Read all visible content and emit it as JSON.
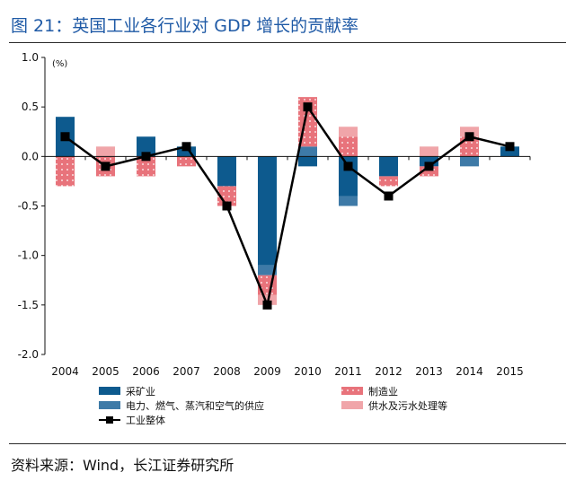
{
  "figure_title": "图 21：英国工业各行业对 GDP 增长的贡献率",
  "source_text": "资料来源：Wind，长江证券研究所",
  "chart_data": {
    "type": "bar",
    "stacked": true,
    "title": "图 21：英国工业各行业对 GDP 增长的贡献率",
    "unit_label": "(%)",
    "categories": [
      "2004",
      "2005",
      "2006",
      "2007",
      "2008",
      "2009",
      "2010",
      "2011",
      "2012",
      "2013",
      "2014",
      "2015"
    ],
    "ylim": [
      -2.0,
      1.0
    ],
    "yticks": [
      1.0,
      0.5,
      0.0,
      -0.5,
      -1.0,
      -1.5,
      -2.0
    ],
    "ytick_labels": [
      "1.0",
      "0.5",
      "0.0",
      "-0.5",
      "-1.0",
      "-1.5",
      "-2.0"
    ],
    "legend_position": "bottom",
    "series": [
      {
        "name": "采矿业",
        "type": "bar",
        "color": "#0d5a8e",
        "pattern": "solid",
        "values": [
          0.4,
          0.0,
          0.2,
          0.1,
          -0.3,
          -1.1,
          -0.1,
          -0.4,
          -0.2,
          -0.1,
          0.0,
          0.1
        ]
      },
      {
        "name": "电力、燃气、蒸汽和空气的供应",
        "type": "bar",
        "color": "#3e7aa7",
        "pattern": "solid",
        "values": [
          0.0,
          0.0,
          0.0,
          0.0,
          0.0,
          -0.1,
          0.1,
          -0.1,
          0.0,
          0.0,
          -0.1,
          0.0
        ]
      },
      {
        "name": "制造业",
        "type": "bar",
        "color": "#e8737b",
        "pattern": "dotted",
        "values": [
          -0.3,
          -0.2,
          -0.2,
          -0.1,
          -0.2,
          -0.2,
          0.5,
          0.2,
          -0.1,
          -0.1,
          0.2,
          0.0
        ]
      },
      {
        "name": "供水及污水处理等",
        "type": "bar",
        "color": "#f0a5a9",
        "pattern": "solid",
        "values": [
          0.0,
          0.1,
          0.0,
          0.0,
          0.0,
          -0.1,
          0.0,
          0.1,
          0.0,
          0.1,
          0.1,
          0.0
        ]
      },
      {
        "name": "工业整体",
        "type": "line",
        "color": "#000000",
        "marker": "square",
        "values": [
          0.2,
          -0.1,
          0.0,
          0.1,
          -0.5,
          -1.5,
          0.5,
          -0.1,
          -0.4,
          -0.1,
          0.2,
          0.1
        ]
      }
    ]
  }
}
